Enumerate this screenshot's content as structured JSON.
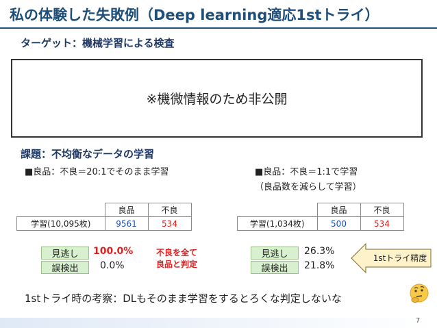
{
  "slide": {
    "title": "私の体験した失敗例（Deep learning適応1stトライ）",
    "target_heading": "ターゲット：機械学習による検査",
    "confidential_text": "※機微情報のため非公開",
    "issue_heading": "課題：不均衡なデータの学習",
    "left": {
      "bullet": "■良品：不良＝20:1でそのまま学習",
      "table": {
        "headers": [
          "",
          "良品",
          "不良"
        ],
        "row": [
          "学習(10,095枚)",
          "9561",
          "534"
        ]
      },
      "miss_label": "見逃し",
      "miss_value": "100.0%",
      "false_label": "誤検出",
      "false_value": "0.0%",
      "note_line1": "不良を全て",
      "note_line2": "良品と判定"
    },
    "right": {
      "bullet_line1": "■良品：不良＝1:1で学習",
      "bullet_line2": "（良品数を減らして学習）",
      "table": {
        "headers": [
          "",
          "良品",
          "不良"
        ],
        "row": [
          "学習(1,034枚)",
          "500",
          "534"
        ]
      },
      "miss_label": "見逃し",
      "miss_value": "26.3%",
      "false_label": "誤検出",
      "false_value": "21.8%",
      "arrow_label": "1stトライ精度"
    },
    "conclusion": "1stトライ時の考察：DLもそのまま学習をするとろくな判定しないな",
    "emoji": "thinking-face-icon",
    "page_number": "7",
    "colors": {
      "title": "#1f4e79",
      "red": "#e0201f",
      "blue": "#1f4fb3",
      "tag_bg": "#d9f0d0",
      "arrow_bg": "#fdf2c9"
    }
  }
}
